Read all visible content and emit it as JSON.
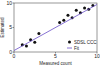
{
  "chart_data": {
    "type": "scatter",
    "x_label": "Measured count",
    "y_label": "Estimated",
    "xlim": [
      0,
      10
    ],
    "ylim": [
      0,
      10
    ],
    "xticks": [
      0,
      5,
      10
    ],
    "yticks": [
      0,
      5,
      10
    ],
    "grid": false,
    "legend": "lower right",
    "series": [
      {
        "name": "SDSL CCC",
        "type": "scatter",
        "color": "#111111",
        "marker": "circle",
        "x": [
          1,
          1.5,
          2,
          2.5,
          3,
          5.5,
          6,
          6.5,
          7,
          7.5,
          8,
          8.5,
          9,
          9.5
        ],
        "values": [
          1.5,
          1.2,
          2.5,
          2,
          3.8,
          6,
          6.5,
          7.5,
          7,
          8.5,
          8,
          9,
          8.7,
          9.5
        ]
      },
      {
        "name": "Fit",
        "type": "line",
        "color": "#6a4fc8",
        "line_style": "solid",
        "x": [
          0,
          10
        ],
        "values": [
          0.3,
          9.7
        ]
      }
    ]
  }
}
